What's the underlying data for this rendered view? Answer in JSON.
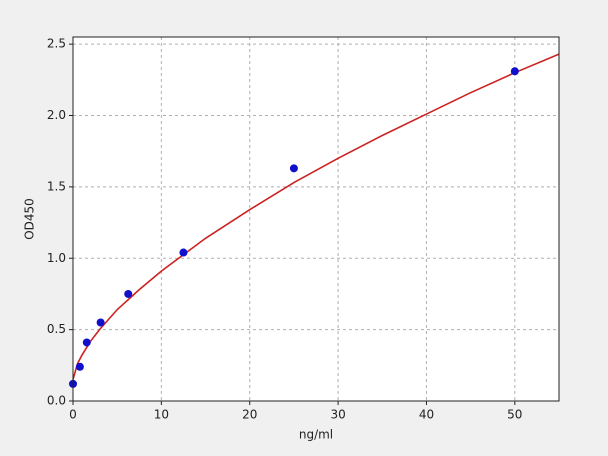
{
  "chart_data": {
    "type": "scatter",
    "xlabel": "ng/ml",
    "ylabel": "OD450",
    "xlim": [
      0,
      55
    ],
    "ylim": [
      0,
      2.55
    ],
    "xticks": [
      0,
      10,
      20,
      30,
      40,
      50
    ],
    "yticks": [
      {
        "value": 0,
        "label": "0.0"
      },
      {
        "value": 0.5,
        "label": "0.5"
      },
      {
        "value": 1,
        "label": "1.0"
      },
      {
        "value": 1.5,
        "label": "1.5"
      },
      {
        "value": 2,
        "label": "2.0"
      },
      {
        "value": 2.5,
        "label": "2.5"
      }
    ],
    "grid": true,
    "series": [
      {
        "style": "line",
        "color": "#cc2222",
        "x": [
          0,
          0.5,
          1,
          2,
          3,
          5,
          7.5,
          10,
          15,
          20,
          25,
          30,
          35,
          40,
          45,
          50,
          55
        ],
        "values": [
          0.15,
          0.26,
          0.32,
          0.42,
          0.5,
          0.64,
          0.78,
          0.91,
          1.14,
          1.34,
          1.53,
          1.7,
          1.86,
          2.01,
          2.16,
          2.3,
          2.43
        ]
      },
      {
        "style": "markers",
        "color": "#1010cc",
        "x": [
          0,
          0.78,
          1.56,
          3.125,
          6.25,
          12.5,
          25,
          50
        ],
        "values": [
          0.12,
          0.24,
          0.41,
          0.55,
          0.75,
          1.04,
          1.63,
          2.31
        ]
      }
    ]
  }
}
